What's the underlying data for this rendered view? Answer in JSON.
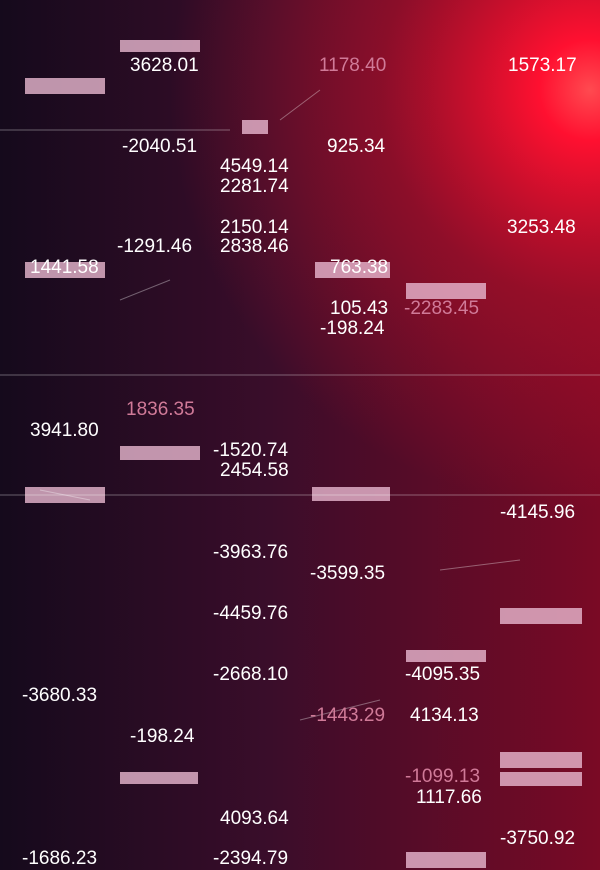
{
  "numbers": [
    "3628.01",
    "1178.40",
    "1573.17",
    "-2040.51",
    "925.34",
    "4549.14",
    "2281.74",
    "2150.14",
    "3253.48",
    "-1291.46",
    "2838.46",
    "1441.58",
    "763.38",
    "105.43",
    "-2283.45",
    "-198.24",
    "1836.35",
    "3941.80",
    "-1520.74",
    "2454.58",
    "-4145.96",
    "-3963.76",
    "-3599.35",
    "-4459.76",
    "-2668.10",
    "-4095.35",
    "-3680.33",
    "-1443.29",
    "4134.13",
    "-198.24",
    "-1099.13",
    "1117.66",
    "4093.64",
    "-3750.92",
    "-1686.23",
    "-2394.79"
  ]
}
